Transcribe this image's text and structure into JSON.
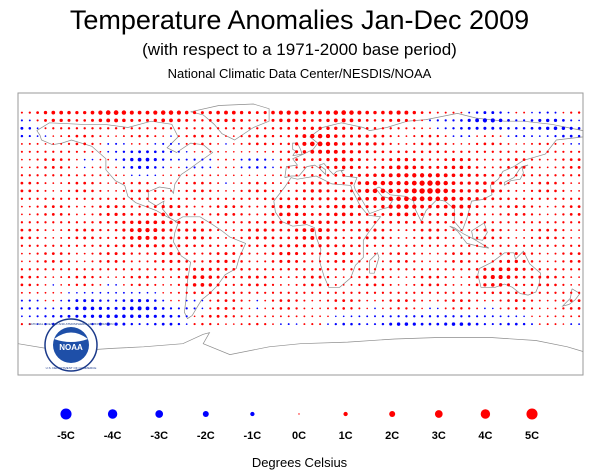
{
  "header": {
    "title": "Temperature Anomalies Jan-Dec 2009",
    "subtitle": "(with respect to a 1971-2000 base period)",
    "source": "National Climatic Data Center/NESDIS/NOAA"
  },
  "logo": {
    "text": "NOAA",
    "ring_text": "NATIONAL OCEANIC AND ATMOSPHERIC ADMINISTRATION",
    "ring_text_bottom": "U.S. DEPARTMENT OF COMMERCE"
  },
  "colors": {
    "warm": "#ff0000",
    "cold": "#0000ff",
    "land": "#8c8c8c",
    "frame": "#9a9a9a"
  },
  "legend": {
    "units": "Degrees Celsius",
    "items": [
      {
        "label": "-5C",
        "value": -5
      },
      {
        "label": "-4C",
        "value": -4
      },
      {
        "label": "-3C",
        "value": -3
      },
      {
        "label": "-2C",
        "value": -2
      },
      {
        "label": "-1C",
        "value": -1
      },
      {
        "label": "0C",
        "value": 0
      },
      {
        "label": "1C",
        "value": 1
      },
      {
        "label": "2C",
        "value": 2
      },
      {
        "label": "3C",
        "value": 3
      },
      {
        "label": "4C",
        "value": 4
      },
      {
        "label": "5C",
        "value": 5
      }
    ]
  },
  "grid": {
    "cell_size_degrees": 5,
    "lon_range": [
      -180,
      180
    ],
    "lat_range": [
      -60,
      90
    ]
  }
}
